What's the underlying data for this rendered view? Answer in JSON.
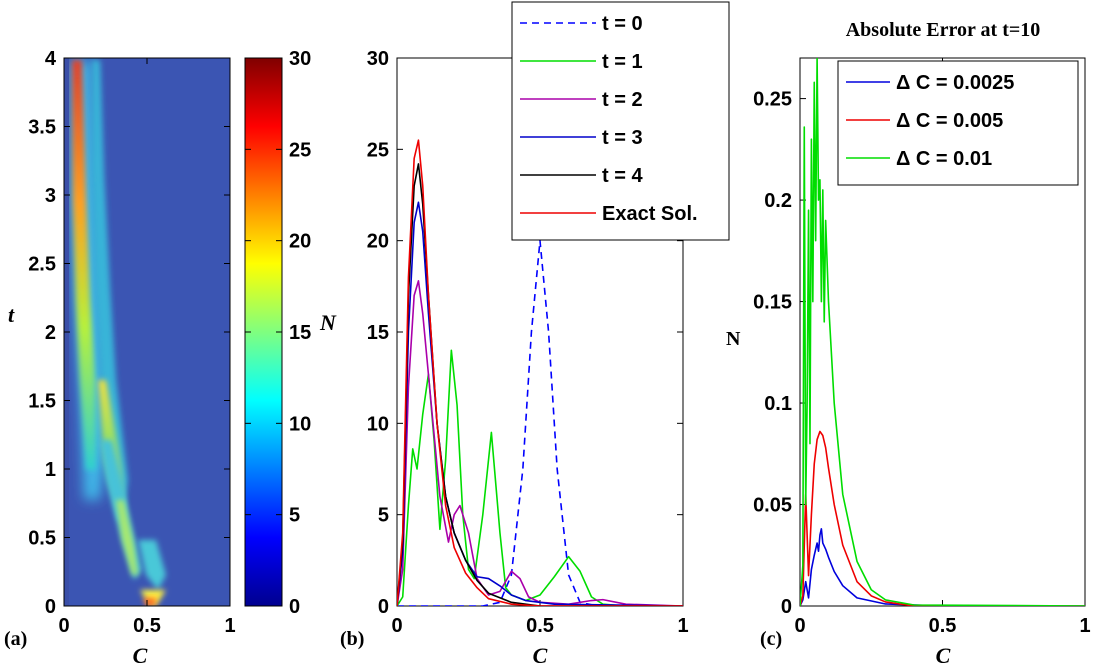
{
  "chart_data": [
    {
      "panel_label": "(a)",
      "type": "heatmap",
      "xlabel": "C",
      "ylabel": "t",
      "xlim": [
        0,
        1
      ],
      "ylim": [
        0,
        4
      ],
      "xticks": [
        "0",
        "0.5",
        "1"
      ],
      "yticks": [
        "0",
        "0.5",
        "1",
        "1.5",
        "2",
        "2.5",
        "3",
        "3.5",
        "4"
      ],
      "colorbar": {
        "range": [
          0,
          30
        ],
        "ticks": [
          "0",
          "5",
          "10",
          "15",
          "20",
          "25",
          "30"
        ],
        "colormap": "jet"
      },
      "ridges": [
        {
          "points": [
            [
              0.1,
              0.95
            ],
            [
              0.085,
              1.5
            ],
            [
              0.07,
              2.2
            ],
            [
              0.065,
              3.0
            ],
            [
              0.06,
              4.0
            ]
          ]
        },
        {
          "points": [
            [
              0.2,
              0.55
            ],
            [
              0.16,
              1.0
            ],
            [
              0.13,
              1.5
            ],
            [
              0.12,
              2.0
            ]
          ]
        },
        {
          "points": [
            [
              0.33,
              0.25
            ],
            [
              0.26,
              0.65
            ],
            [
              0.22,
              1.0
            ]
          ]
        },
        {
          "points": [
            [
              0.5,
              0.0
            ],
            [
              0.55,
              0.35
            ]
          ]
        }
      ]
    },
    {
      "panel_label": "(b)",
      "type": "line",
      "xlabel": "C",
      "ylabel": "N",
      "xlim": [
        0,
        1
      ],
      "ylim": [
        0,
        30
      ],
      "xticks": [
        "0",
        "0.5",
        "1"
      ],
      "yticks": [
        "0",
        "5",
        "10",
        "15",
        "20",
        "25",
        "30"
      ],
      "legend_position": "top-right",
      "series": [
        {
          "name": "t = 0",
          "color": "#0000ff",
          "dashed": true,
          "points": [
            [
              0,
              0
            ],
            [
              0.3,
              0
            ],
            [
              0.36,
              0.2
            ],
            [
              0.4,
              1.7
            ],
            [
              0.44,
              7.5
            ],
            [
              0.47,
              15
            ],
            [
              0.5,
              20
            ],
            [
              0.53,
              15
            ],
            [
              0.56,
              7.5
            ],
            [
              0.6,
              1.7
            ],
            [
              0.64,
              0.2
            ],
            [
              0.7,
              0
            ],
            [
              1,
              0
            ]
          ]
        },
        {
          "name": "t = 1",
          "color": "#00dd00",
          "points": [
            [
              0,
              0
            ],
            [
              0.02,
              0.5
            ],
            [
              0.04,
              5.5
            ],
            [
              0.055,
              8.6
            ],
            [
              0.07,
              7.5
            ],
            [
              0.09,
              10.5
            ],
            [
              0.11,
              12.7
            ],
            [
              0.13,
              9
            ],
            [
              0.15,
              4.2
            ],
            [
              0.17,
              8
            ],
            [
              0.19,
              14
            ],
            [
              0.21,
              11
            ],
            [
              0.23,
              5
            ],
            [
              0.25,
              2
            ],
            [
              0.27,
              1.5
            ],
            [
              0.3,
              5
            ],
            [
              0.33,
              9.5
            ],
            [
              0.36,
              4
            ],
            [
              0.38,
              1
            ],
            [
              0.4,
              0.6
            ],
            [
              0.45,
              0.3
            ],
            [
              0.5,
              0.6
            ],
            [
              0.55,
              1.6
            ],
            [
              0.6,
              2.7
            ],
            [
              0.64,
              1.9
            ],
            [
              0.68,
              0.5
            ],
            [
              0.72,
              0.1
            ],
            [
              0.8,
              0
            ],
            [
              1,
              0
            ]
          ]
        },
        {
          "name": "t = 2",
          "color": "#aa00aa",
          "points": [
            [
              0,
              0
            ],
            [
              0.02,
              2
            ],
            [
              0.04,
              12
            ],
            [
              0.06,
              17
            ],
            [
              0.075,
              17.8
            ],
            [
              0.09,
              16
            ],
            [
              0.12,
              11
            ],
            [
              0.15,
              6
            ],
            [
              0.18,
              3.5
            ],
            [
              0.2,
              5
            ],
            [
              0.22,
              5.5
            ],
            [
              0.25,
              4
            ],
            [
              0.28,
              1.5
            ],
            [
              0.32,
              0.6
            ],
            [
              0.36,
              0.8
            ],
            [
              0.4,
              1.9
            ],
            [
              0.43,
              1.5
            ],
            [
              0.46,
              0.5
            ],
            [
              0.5,
              0.2
            ],
            [
              0.6,
              0.1
            ],
            [
              0.68,
              0.3
            ],
            [
              0.72,
              0.35
            ],
            [
              0.8,
              0.1
            ],
            [
              1,
              0
            ]
          ]
        },
        {
          "name": "t = 3",
          "color": "#0000cc",
          "points": [
            [
              0,
              0
            ],
            [
              0.02,
              3
            ],
            [
              0.04,
              15
            ],
            [
              0.06,
              21
            ],
            [
              0.075,
              22.1
            ],
            [
              0.09,
              20.5
            ],
            [
              0.11,
              16
            ],
            [
              0.14,
              10
            ],
            [
              0.17,
              6
            ],
            [
              0.2,
              4
            ],
            [
              0.24,
              2.5
            ],
            [
              0.28,
              1.6
            ],
            [
              0.32,
              1.5
            ],
            [
              0.36,
              1.1
            ],
            [
              0.4,
              0.6
            ],
            [
              0.45,
              0.3
            ],
            [
              0.55,
              0.1
            ],
            [
              1,
              0
            ]
          ]
        },
        {
          "name": "t = 4",
          "color": "#000000",
          "points": [
            [
              0,
              0
            ],
            [
              0.02,
              3.5
            ],
            [
              0.04,
              17
            ],
            [
              0.06,
              23
            ],
            [
              0.075,
              24.2
            ],
            [
              0.09,
              22
            ],
            [
              0.11,
              17
            ],
            [
              0.14,
              10
            ],
            [
              0.17,
              6
            ],
            [
              0.2,
              4
            ],
            [
              0.24,
              2.5
            ],
            [
              0.28,
              1.4
            ],
            [
              0.32,
              0.7
            ],
            [
              0.4,
              0.2
            ],
            [
              0.5,
              0
            ],
            [
              1,
              0
            ]
          ]
        },
        {
          "name": "Exact Sol.",
          "color": "#ee0000",
          "points": [
            [
              0,
              0
            ],
            [
              0.02,
              4
            ],
            [
              0.04,
              18
            ],
            [
              0.06,
              24.5
            ],
            [
              0.075,
              25.5
            ],
            [
              0.09,
              23
            ],
            [
              0.11,
              17
            ],
            [
              0.14,
              10
            ],
            [
              0.17,
              5.5
            ],
            [
              0.2,
              3.2
            ],
            [
              0.24,
              1.8
            ],
            [
              0.28,
              1
            ],
            [
              0.32,
              0.4
            ],
            [
              0.4,
              0.1
            ],
            [
              0.5,
              0
            ],
            [
              1,
              0
            ]
          ]
        }
      ]
    },
    {
      "panel_label": "(c)",
      "type": "line",
      "title": "Absolute Error at t=10",
      "xlabel": "C",
      "ylabel": "N",
      "xlim": [
        0,
        1
      ],
      "ylim": [
        0,
        0.27
      ],
      "xticks": [
        "0",
        "0.5",
        "1"
      ],
      "yticks": [
        "0",
        "0.05",
        "0.1",
        "0.15",
        "0.2",
        "0.25"
      ],
      "legend_position": "top-right",
      "series": [
        {
          "name": "Δ C = 0.0025",
          "color": "#0000dd",
          "points": [
            [
              0,
              0
            ],
            [
              0.01,
              0.003
            ],
            [
              0.02,
              0.012
            ],
            [
              0.03,
              0.004
            ],
            [
              0.04,
              0.018
            ],
            [
              0.05,
              0.025
            ],
            [
              0.06,
              0.031
            ],
            [
              0.065,
              0.027
            ],
            [
              0.07,
              0.035
            ],
            [
              0.075,
              0.038
            ],
            [
              0.08,
              0.031
            ],
            [
              0.09,
              0.028
            ],
            [
              0.1,
              0.024
            ],
            [
              0.12,
              0.017
            ],
            [
              0.15,
              0.01
            ],
            [
              0.2,
              0.004
            ],
            [
              0.3,
              0.001
            ],
            [
              0.5,
              0
            ],
            [
              1,
              0
            ]
          ]
        },
        {
          "name": "Δ C = 0.005",
          "color": "#ee0000",
          "points": [
            [
              0,
              0
            ],
            [
              0.01,
              0.005
            ],
            [
              0.02,
              0.055
            ],
            [
              0.03,
              0.015
            ],
            [
              0.04,
              0.045
            ],
            [
              0.05,
              0.07
            ],
            [
              0.06,
              0.082
            ],
            [
              0.07,
              0.086
            ],
            [
              0.08,
              0.084
            ],
            [
              0.09,
              0.078
            ],
            [
              0.1,
              0.068
            ],
            [
              0.12,
              0.05
            ],
            [
              0.15,
              0.03
            ],
            [
              0.2,
              0.012
            ],
            [
              0.25,
              0.005
            ],
            [
              0.3,
              0.002
            ],
            [
              0.4,
              0
            ],
            [
              1,
              0
            ]
          ]
        },
        {
          "name": "Δ C = 0.01",
          "color": "#00dd00",
          "points": [
            [
              0,
              0
            ],
            [
              0.01,
              0.02
            ],
            [
              0.015,
              0.236
            ],
            [
              0.02,
              0.05
            ],
            [
              0.025,
              0.1
            ],
            [
              0.03,
              0.195
            ],
            [
              0.035,
              0.08
            ],
            [
              0.04,
              0.23
            ],
            [
              0.045,
              0.15
            ],
            [
              0.05,
              0.258
            ],
            [
              0.055,
              0.18
            ],
            [
              0.06,
              0.27
            ],
            [
              0.065,
              0.2
            ],
            [
              0.07,
              0.21
            ],
            [
              0.075,
              0.15
            ],
            [
              0.08,
              0.205
            ],
            [
              0.085,
              0.14
            ],
            [
              0.09,
              0.19
            ],
            [
              0.1,
              0.15
            ],
            [
              0.12,
              0.1
            ],
            [
              0.15,
              0.055
            ],
            [
              0.2,
              0.022
            ],
            [
              0.25,
              0.008
            ],
            [
              0.3,
              0.003
            ],
            [
              0.4,
              0.0005
            ],
            [
              1,
              0
            ]
          ]
        }
      ]
    }
  ]
}
